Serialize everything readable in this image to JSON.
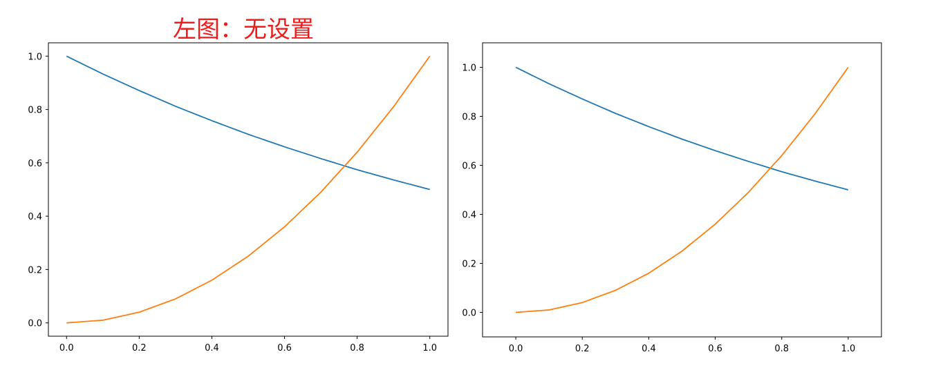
{
  "annotation": {
    "text": "左图：无设置",
    "color": "#ee1c1c"
  },
  "chart_data": [
    {
      "type": "line",
      "title": "",
      "xlabel": "",
      "ylabel": "",
      "xlim": [
        -0.05,
        1.05
      ],
      "ylim": [
        -0.05,
        1.05
      ],
      "xticks": [
        "0.0",
        "0.2",
        "0.4",
        "0.6",
        "0.8",
        "1.0"
      ],
      "yticks": [
        "0.0",
        "0.2",
        "0.4",
        "0.6",
        "0.8",
        "1.0"
      ],
      "grid": false,
      "series": [
        {
          "color": "#1f77b4",
          "x": [
            0,
            0.1,
            0.2,
            0.3,
            0.4,
            0.5,
            0.6,
            0.7,
            0.8,
            0.9,
            1.0
          ],
          "y": [
            1.0,
            0.933,
            0.871,
            0.812,
            0.758,
            0.707,
            0.66,
            0.616,
            0.574,
            0.536,
            0.5
          ]
        },
        {
          "color": "#ff7f0e",
          "x": [
            0,
            0.1,
            0.2,
            0.3,
            0.4,
            0.5,
            0.6,
            0.7,
            0.8,
            0.9,
            1.0
          ],
          "y": [
            0.0,
            0.01,
            0.04,
            0.09,
            0.16,
            0.25,
            0.36,
            0.49,
            0.64,
            0.81,
            1.0
          ]
        }
      ]
    },
    {
      "type": "line",
      "title": "",
      "xlabel": "",
      "ylabel": "",
      "xlim": [
        -0.1,
        1.1
      ],
      "ylim": [
        -0.1,
        1.1
      ],
      "xticks": [
        "0.0",
        "0.2",
        "0.4",
        "0.6",
        "0.8",
        "1.0"
      ],
      "yticks": [
        "0.0",
        "0.2",
        "0.4",
        "0.6",
        "0.8",
        "1.0"
      ],
      "grid": false,
      "series": [
        {
          "color": "#1f77b4",
          "x": [
            0,
            0.1,
            0.2,
            0.3,
            0.4,
            0.5,
            0.6,
            0.7,
            0.8,
            0.9,
            1.0
          ],
          "y": [
            1.0,
            0.933,
            0.871,
            0.812,
            0.758,
            0.707,
            0.66,
            0.616,
            0.574,
            0.536,
            0.5
          ]
        },
        {
          "color": "#ff7f0e",
          "x": [
            0,
            0.1,
            0.2,
            0.3,
            0.4,
            0.5,
            0.6,
            0.7,
            0.8,
            0.9,
            1.0
          ],
          "y": [
            0.0,
            0.01,
            0.04,
            0.09,
            0.16,
            0.25,
            0.36,
            0.49,
            0.64,
            0.81,
            1.0
          ]
        }
      ]
    }
  ]
}
